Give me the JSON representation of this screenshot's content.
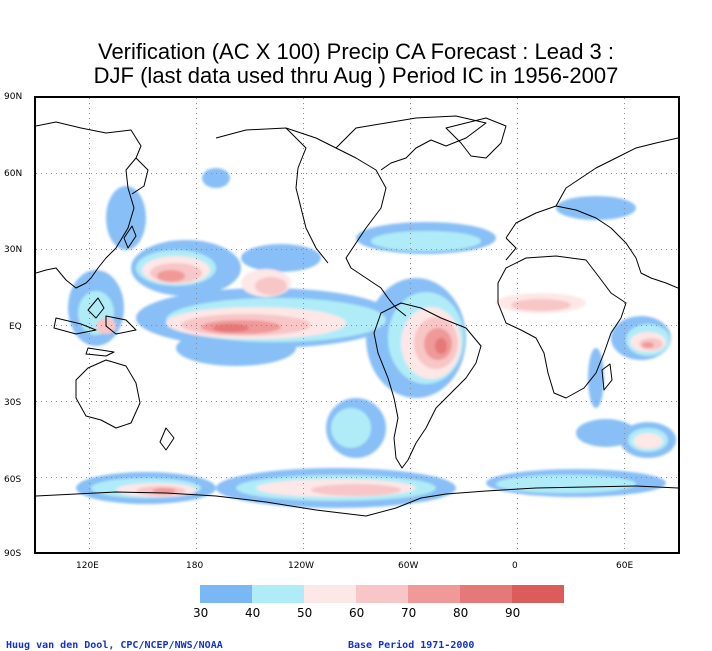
{
  "title": {
    "line1": "Verification (AC X 100) Precip CA Forecast : Lead 3 :",
    "line2": "DJF (last data used thru Aug ) Period IC in 1956-2007"
  },
  "map": {
    "lat_labels": [
      "90N",
      "60N",
      "30N",
      "EQ",
      "30S",
      "60S",
      "90S"
    ],
    "lon_labels": [
      "120E",
      "180",
      "120W",
      "60W",
      "0",
      "60E"
    ],
    "lon_range": [
      "60E",
      "60E"
    ],
    "lat_range": [
      "90S",
      "90N"
    ]
  },
  "colorbar": {
    "levels": [
      "30",
      "40",
      "50",
      "60",
      "70",
      "80",
      "90"
    ],
    "colors": [
      "#7ab8f5",
      "#b0ecf7",
      "#fde7e7",
      "#f8c6c6",
      "#f09999",
      "#e57878",
      "#dc5c5c"
    ]
  },
  "credits": {
    "author": "Huug van den Dool, CPC/NCEP/NWS/NOAA",
    "base_period": "Base Period 1971-2000"
  }
}
